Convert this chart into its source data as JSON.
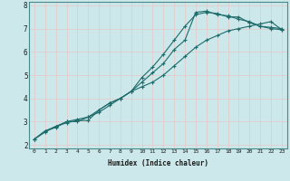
{
  "xlabel": "Humidex (Indice chaleur)",
  "background_color": "#cce8ea",
  "grid_color": "#e8c8c8",
  "line_color": "#1e6b6b",
  "xlim": [
    -0.5,
    23.5
  ],
  "ylim": [
    1.85,
    8.15
  ],
  "xticks": [
    0,
    1,
    2,
    3,
    4,
    5,
    6,
    7,
    8,
    9,
    10,
    11,
    12,
    13,
    14,
    15,
    16,
    17,
    18,
    19,
    20,
    21,
    22,
    23
  ],
  "yticks": [
    2,
    3,
    4,
    5,
    6,
    7,
    8
  ],
  "series": [
    [
      2.25,
      2.6,
      2.75,
      3.0,
      3.0,
      3.2,
      3.5,
      3.8,
      4.0,
      4.3,
      4.7,
      5.1,
      5.5,
      6.1,
      6.5,
      7.7,
      7.75,
      7.6,
      7.55,
      7.4,
      7.3,
      7.1,
      7.05,
      7.0
    ],
    [
      2.25,
      2.6,
      2.8,
      3.0,
      3.1,
      3.2,
      3.4,
      3.7,
      4.0,
      4.3,
      4.9,
      5.35,
      5.9,
      6.5,
      7.1,
      7.6,
      7.7,
      7.65,
      7.5,
      7.5,
      7.25,
      7.1,
      7.0,
      6.95
    ],
    [
      2.25,
      2.55,
      2.8,
      2.95,
      3.05,
      3.05,
      3.5,
      3.8,
      4.0,
      4.3,
      4.5,
      4.7,
      5.0,
      5.4,
      5.8,
      6.2,
      6.5,
      6.7,
      6.9,
      7.0,
      7.1,
      7.2,
      7.3,
      6.95
    ]
  ],
  "xlabel_fontsize": 5.5,
  "tick_fontsize": 4.5,
  "ytick_fontsize": 5.5,
  "marker_size": 2.8,
  "linewidth": 0.8
}
